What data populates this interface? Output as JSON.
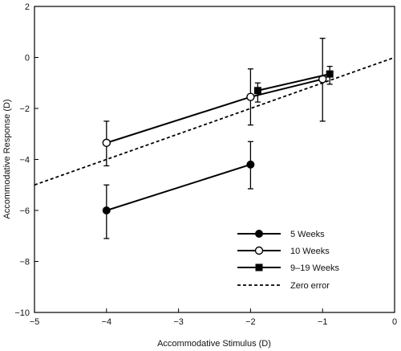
{
  "chart_data": {
    "type": "line",
    "title": "",
    "xlabel": "Accommodative Stimulus (D)",
    "ylabel": "Accommodative Response (D)",
    "xlim": [
      -5,
      0
    ],
    "ylim": [
      -10,
      2
    ],
    "xticks": [
      -5,
      -4,
      -3,
      -2,
      -1,
      0
    ],
    "yticks": [
      -10,
      -8,
      -6,
      -4,
      -2,
      0,
      2
    ],
    "grid": false,
    "legend_position": "bottom-right",
    "series": [
      {
        "name": "5 Weeks",
        "marker": "filled-circle",
        "x": [
          -4,
          -2
        ],
        "y": [
          -6.0,
          -4.2
        ],
        "err_low": [
          1.1,
          0.95
        ],
        "err_high": [
          1.0,
          0.9
        ]
      },
      {
        "name": "10 Weeks",
        "marker": "open-circle",
        "x": [
          -4,
          -2,
          -1
        ],
        "y": [
          -3.35,
          -1.55,
          -0.85
        ],
        "err_low": [
          0.9,
          1.1,
          1.65
        ],
        "err_high": [
          0.85,
          1.1,
          1.6
        ]
      },
      {
        "name": "9–19 Weeks",
        "marker": "filled-square",
        "x": [
          -1.9,
          -0.9
        ],
        "y": [
          -1.3,
          -0.65
        ],
        "err_low": [
          0.45,
          0.4
        ],
        "err_high": [
          0.3,
          0.3
        ]
      },
      {
        "name": "Zero error",
        "marker": "dashed-line",
        "x": [
          -5,
          0
        ],
        "y": [
          -5,
          0
        ]
      }
    ]
  }
}
